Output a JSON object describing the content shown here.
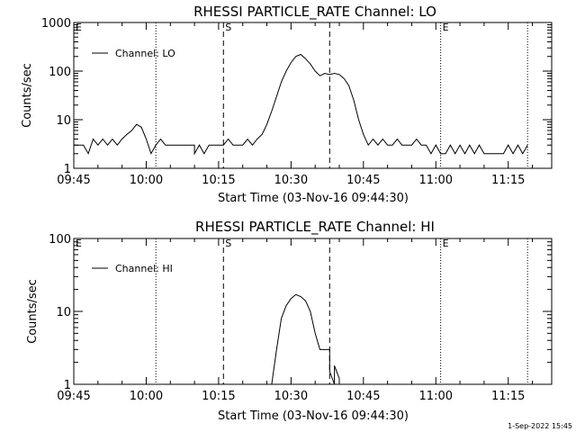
{
  "footer_date": "1-Sep-2022 15:45",
  "chart_data": [
    {
      "type": "line",
      "title": "RHESSI PARTICLE_RATE Channel: LO",
      "xlabel": "Start Time (03-Nov-16 09:44:30)",
      "ylabel": "Counts/sec",
      "xlim": [
        "09:45",
        "11:24"
      ],
      "ylim": [
        1,
        1000
      ],
      "yscale": "log",
      "x_ticks": [
        "09:45",
        "10:00",
        "10:15",
        "10:30",
        "10:45",
        "11:00",
        "11:15"
      ],
      "y_ticks": [
        "1",
        "10",
        "100",
        "1000"
      ],
      "legend": "top-left",
      "event_markers": [
        {
          "time": "09:45",
          "label": "E",
          "style": "dotted"
        },
        {
          "time": "10:02",
          "label": "",
          "style": "dotted"
        },
        {
          "time": "10:16",
          "label": "S",
          "style": "dashed"
        },
        {
          "time": "10:38",
          "label": "",
          "style": "dashed"
        },
        {
          "time": "11:01",
          "label": "E",
          "style": "dotted"
        },
        {
          "time": "11:19",
          "label": "",
          "style": "dotted"
        }
      ],
      "series": [
        {
          "name": "Channel: LO",
          "points": [
            [
              "09:45",
              3
            ],
            [
              "09:47",
              3
            ],
            [
              "09:48",
              2
            ],
            [
              "09:49",
              4
            ],
            [
              "09:50",
              3
            ],
            [
              "09:51",
              4
            ],
            [
              "09:52",
              3
            ],
            [
              "09:53",
              4
            ],
            [
              "09:54",
              3
            ],
            [
              "09:55",
              4
            ],
            [
              "09:56",
              5
            ],
            [
              "09:57",
              6
            ],
            [
              "09:58",
              8
            ],
            [
              "09:59",
              7
            ],
            [
              "10:00",
              4
            ],
            [
              "10:01",
              2
            ],
            [
              "10:02",
              3
            ],
            [
              "10:03",
              4
            ],
            [
              "10:04",
              3
            ],
            [
              "10:08",
              3
            ],
            [
              "10:10",
              3
            ],
            [
              "10:10",
              2
            ],
            [
              "10:11",
              3
            ],
            [
              "10:12",
              2
            ],
            [
              "10:13",
              3
            ],
            [
              "10:15",
              3
            ],
            [
              "10:16",
              3
            ],
            [
              "10:17",
              4
            ],
            [
              "10:18",
              3
            ],
            [
              "10:20",
              3
            ],
            [
              "10:21",
              4
            ],
            [
              "10:22",
              3
            ],
            [
              "10:23",
              4
            ],
            [
              "10:24",
              5
            ],
            [
              "10:25",
              8
            ],
            [
              "10:26",
              15
            ],
            [
              "10:27",
              30
            ],
            [
              "10:28",
              60
            ],
            [
              "10:29",
              100
            ],
            [
              "10:30",
              150
            ],
            [
              "10:31",
              200
            ],
            [
              "10:32",
              220
            ],
            [
              "10:33",
              180
            ],
            [
              "10:34",
              140
            ],
            [
              "10:35",
              100
            ],
            [
              "10:36",
              80
            ],
            [
              "10:37",
              90
            ],
            [
              "10:38",
              85
            ],
            [
              "10:39",
              90
            ],
            [
              "10:40",
              85
            ],
            [
              "10:41",
              70
            ],
            [
              "10:42",
              50
            ],
            [
              "10:43",
              25
            ],
            [
              "10:44",
              10
            ],
            [
              "10:45",
              5
            ],
            [
              "10:46",
              3
            ],
            [
              "10:47",
              4
            ],
            [
              "10:48",
              3
            ],
            [
              "10:49",
              4
            ],
            [
              "10:50",
              3
            ],
            [
              "10:51",
              3
            ],
            [
              "10:52",
              4
            ],
            [
              "10:53",
              3
            ],
            [
              "10:55",
              3
            ],
            [
              "10:56",
              4
            ],
            [
              "10:57",
              3
            ],
            [
              "10:58",
              3
            ],
            [
              "10:59",
              2
            ],
            [
              "11:00",
              3
            ],
            [
              "11:01",
              2
            ],
            [
              "11:02",
              2
            ],
            [
              "11:03",
              3
            ],
            [
              "11:04",
              2
            ],
            [
              "11:05",
              3
            ],
            [
              "11:06",
              2
            ],
            [
              "11:07",
              3
            ],
            [
              "11:08",
              2
            ],
            [
              "11:09",
              3
            ],
            [
              "11:10",
              2
            ],
            [
              "11:14",
              2
            ],
            [
              "11:15",
              3
            ],
            [
              "11:16",
              2
            ],
            [
              "11:17",
              3
            ],
            [
              "11:18",
              2
            ],
            [
              "11:19",
              3
            ]
          ]
        }
      ]
    },
    {
      "type": "line",
      "title": "RHESSI PARTICLE_RATE Channel: HI",
      "xlabel": "Start Time (03-Nov-16 09:44:30)",
      "ylabel": "Counts/sec",
      "xlim": [
        "09:45",
        "11:24"
      ],
      "ylim": [
        1,
        100
      ],
      "yscale": "log",
      "x_ticks": [
        "09:45",
        "10:00",
        "10:15",
        "10:30",
        "10:45",
        "11:00",
        "11:15"
      ],
      "y_ticks": [
        "1",
        "10",
        "100"
      ],
      "legend": "top-left",
      "event_markers": [
        {
          "time": "09:45",
          "label": "E",
          "style": "dotted"
        },
        {
          "time": "10:02",
          "label": "",
          "style": "dotted"
        },
        {
          "time": "10:16",
          "label": "S",
          "style": "dashed"
        },
        {
          "time": "10:38",
          "label": "",
          "style": "dashed"
        },
        {
          "time": "11:01",
          "label": "E",
          "style": "dotted"
        },
        {
          "time": "11:19",
          "label": "",
          "style": "dotted"
        }
      ],
      "series": [
        {
          "name": "Channel: HI",
          "points": [
            [
              "10:26",
              1
            ],
            [
              "10:27",
              3
            ],
            [
              "10:28",
              8
            ],
            [
              "10:29",
              12
            ],
            [
              "10:30",
              15
            ],
            [
              "10:31",
              17
            ],
            [
              "10:32",
              16
            ],
            [
              "10:33",
              14
            ],
            [
              "10:34",
              10
            ],
            [
              "10:35",
              5
            ],
            [
              "10:36",
              3
            ],
            [
              "10:37",
              3
            ],
            [
              "10:38",
              3
            ],
            [
              "10:38",
              1.5
            ],
            [
              "10:39",
              1
            ],
            [
              "10:39",
              1.8
            ],
            [
              "10:40",
              1.2
            ],
            [
              "10:40",
              1
            ]
          ]
        }
      ]
    }
  ]
}
